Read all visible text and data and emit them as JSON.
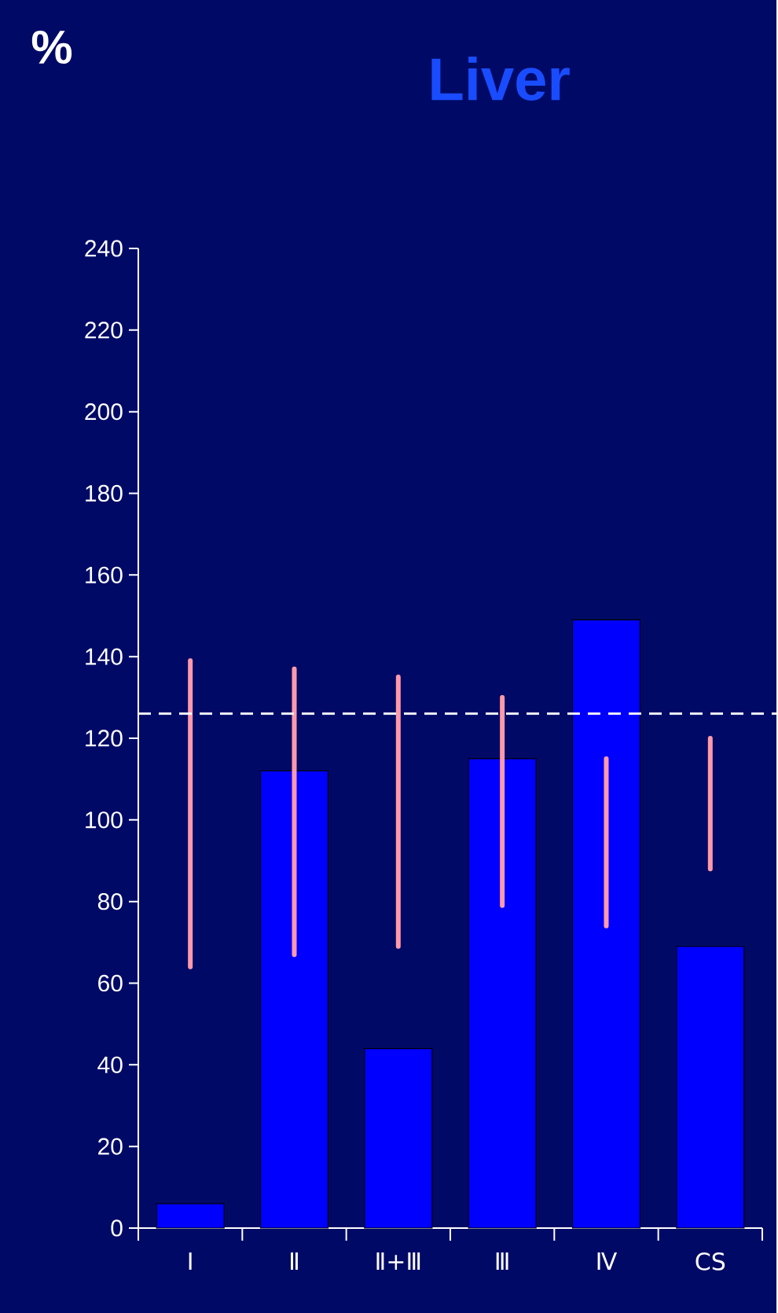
{
  "chart_data": {
    "type": "bar",
    "title": "Liver",
    "ylabel": "%",
    "categories": [
      "I",
      "Ⅱ",
      "Ⅱ+Ⅲ",
      "Ⅲ",
      "Ⅳ",
      "CS"
    ],
    "series": [
      {
        "color": "#0000ff",
        "values": [
          6,
          112,
          44,
          115,
          149,
          69
        ]
      },
      {
        "color": "#ff9aaa",
        "base": [
          64,
          67,
          69,
          79,
          74,
          88
        ],
        "values": [
          75,
          70,
          66,
          51,
          41,
          32
        ]
      }
    ],
    "ylim": [
      0,
      240
    ],
    "yticks": [
      0,
      20,
      40,
      60,
      80,
      100,
      120,
      140,
      160,
      180,
      200,
      220,
      240
    ],
    "ref_lines": [
      {
        "axis": "y",
        "value": 126,
        "color": "#ffffff",
        "line_style": "dashed"
      }
    ],
    "grid": false
  }
}
